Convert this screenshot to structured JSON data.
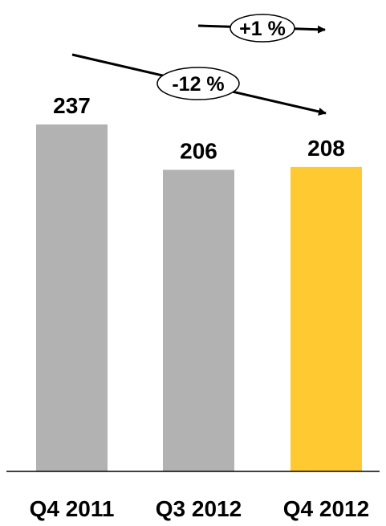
{
  "chart_data": {
    "type": "bar",
    "categories": [
      "Q4 2011",
      "Q3 2012",
      "Q4 2012"
    ],
    "values": [
      237,
      206,
      208
    ],
    "value_labels": [
      "237",
      "206",
      "208"
    ],
    "ylim": [
      0,
      237
    ],
    "grid": false,
    "colors": {
      "base": "#b2b2b2",
      "highlight": "#ffc931"
    },
    "highlight_index": 2,
    "annotations": [
      {
        "label": "+1 %",
        "from": "Q3 2012",
        "to": "Q4 2012"
      },
      {
        "label": "-12 %",
        "from": "Q4 2011",
        "to": "Q4 2012"
      }
    ]
  }
}
